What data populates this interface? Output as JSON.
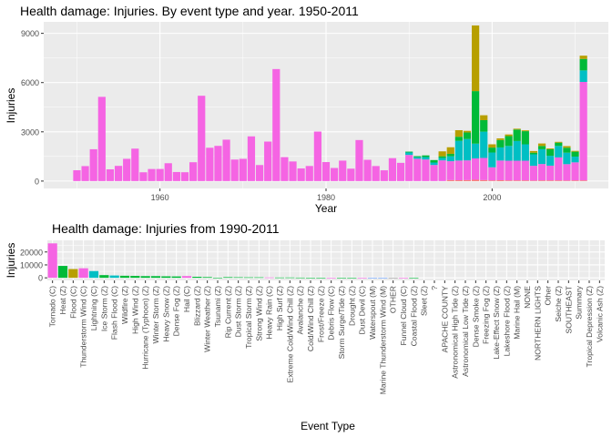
{
  "chart_data": [
    {
      "type": "bar",
      "stacked": true,
      "title": "Health damage: Injuries. By event type and year. 1950-2011",
      "xlabel": "Year",
      "ylabel": "Injuries",
      "xlim": [
        1946,
        2014
      ],
      "ylim": [
        -450,
        9700
      ],
      "x_ticks": [
        1960,
        1980,
        2000
      ],
      "y_ticks": [
        0,
        3000,
        6000,
        9000
      ],
      "x_tick_labels": [
        "1960",
        "1980",
        "2000"
      ],
      "y_tick_labels": [
        "0",
        "3000",
        "6000",
        "9000"
      ],
      "grid": true,
      "legend": "none",
      "x": [
        1950,
        1951,
        1952,
        1953,
        1954,
        1955,
        1956,
        1957,
        1958,
        1959,
        1960,
        1961,
        1962,
        1963,
        1964,
        1965,
        1966,
        1967,
        1968,
        1969,
        1970,
        1971,
        1972,
        1973,
        1974,
        1975,
        1976,
        1977,
        1978,
        1979,
        1980,
        1981,
        1982,
        1983,
        1984,
        1985,
        1986,
        1987,
        1988,
        1989,
        1990,
        1991,
        1992,
        1993,
        1994,
        1995,
        1996,
        1997,
        1998,
        1999,
        2000,
        2001,
        2002,
        2003,
        2004,
        2005,
        2006,
        2007,
        2008,
        2009,
        2010,
        2011
      ],
      "series": [
        {
          "color": "#F8766D",
          "values": [
            0,
            0,
            0,
            0,
            0,
            0,
            0,
            0,
            0,
            0,
            0,
            0,
            0,
            0,
            0,
            0,
            0,
            0,
            0,
            0,
            0,
            0,
            0,
            0,
            0,
            0,
            0,
            0,
            0,
            0,
            0,
            0,
            0,
            0,
            0,
            0,
            0,
            0,
            0,
            0,
            0,
            0,
            0,
            0,
            0,
            60,
            50,
            60,
            80,
            60,
            40,
            50,
            40,
            40,
            40,
            30,
            40,
            40,
            40,
            30,
            40,
            40
          ]
        },
        {
          "color": "#F564E3",
          "values": [
            659,
            912,
            1939,
            5131,
            715,
            926,
            1355,
            1976,
            535,
            734,
            737,
            1087,
            551,
            538,
            1148,
            5197,
            2030,
            2144,
            2522,
            1311,
            1355,
            2723,
            976,
            2406,
            6824,
            1457,
            1195,
            771,
            919,
            3014,
            1157,
            798,
            1246,
            756,
            2499,
            1295,
            916,
            656,
            1395,
            1111,
            1593,
            1358,
            1314,
            980,
            1260,
            1150,
            1200,
            1200,
            1300,
            1350,
            800,
            1200,
            1200,
            1200,
            1200,
            900,
            1000,
            900,
            1400,
            1000,
            1100,
            6000
          ]
        },
        {
          "color": "#00BFC4",
          "values": [
            0,
            0,
            0,
            0,
            0,
            0,
            0,
            0,
            0,
            0,
            0,
            0,
            0,
            0,
            0,
            0,
            0,
            0,
            0,
            0,
            0,
            0,
            0,
            0,
            0,
            0,
            0,
            0,
            0,
            0,
            0,
            0,
            0,
            0,
            0,
            0,
            0,
            0,
            0,
            0,
            150,
            100,
            150,
            150,
            150,
            300,
            1200,
            1300,
            900,
            1600,
            900,
            800,
            900,
            1200,
            1000,
            700,
            900,
            600,
            700,
            700,
            350,
            700
          ]
        },
        {
          "color": "#619CFF",
          "values": [
            0,
            0,
            0,
            0,
            0,
            0,
            0,
            0,
            0,
            0,
            0,
            0,
            0,
            0,
            0,
            0,
            0,
            0,
            0,
            0,
            0,
            0,
            0,
            0,
            0,
            0,
            0,
            0,
            0,
            0,
            0,
            0,
            0,
            0,
            0,
            0,
            0,
            0,
            0,
            0,
            0,
            0,
            0,
            0,
            0,
            0,
            0,
            0,
            0,
            0,
            0,
            0,
            0,
            0,
            0,
            0,
            0,
            0,
            0,
            0,
            0,
            0
          ]
        },
        {
          "color": "#00BA38",
          "values": [
            0,
            0,
            0,
            0,
            0,
            0,
            0,
            0,
            0,
            0,
            0,
            0,
            0,
            0,
            0,
            0,
            0,
            0,
            0,
            0,
            0,
            0,
            0,
            0,
            0,
            0,
            0,
            0,
            0,
            0,
            0,
            0,
            0,
            0,
            0,
            0,
            0,
            0,
            0,
            0,
            50,
            60,
            100,
            150,
            100,
            150,
            250,
            400,
            3200,
            700,
            300,
            450,
            600,
            700,
            800,
            100,
            200,
            400,
            200,
            300,
            300,
            700
          ]
        },
        {
          "color": "#B79F00",
          "values": [
            0,
            0,
            0,
            0,
            0,
            0,
            0,
            0,
            0,
            0,
            0,
            0,
            0,
            0,
            0,
            0,
            0,
            0,
            0,
            0,
            0,
            0,
            0,
            0,
            0,
            0,
            0,
            0,
            0,
            0,
            0,
            0,
            0,
            0,
            0,
            0,
            0,
            0,
            0,
            0,
            0,
            0,
            0,
            0,
            300,
            400,
            400,
            100,
            4000,
            300,
            200,
            100,
            100,
            50,
            50,
            100,
            150,
            50,
            50,
            100,
            50,
            200
          ]
        }
      ]
    },
    {
      "type": "bar",
      "title": "Health damage: Injuries from 1990-2011",
      "xlabel": "Event Type",
      "ylabel": "Injuries",
      "ylim": [
        -2000,
        29000
      ],
      "y_ticks": [
        0,
        10000,
        20000
      ],
      "y_tick_labels": [
        "0",
        "10000",
        "20000"
      ],
      "grid": true,
      "legend": "none",
      "categories": [
        "Tornado (C)",
        "Heat (Z)",
        "Flood (C)",
        "Thunderstorm Wind (C)",
        "Lightning (C)",
        "Ice Storm (Z)",
        "Flash Flood (C)",
        "Wildfire (Z)",
        "High Wind (Z)",
        "Hurricane (Typhoon) (Z)",
        "Winter Storm (Z)",
        "Heavy Snow (Z)",
        "Dense Fog (Z)",
        "Hail (C)",
        "Blizzard (Z)",
        "Winter Weather (Z)",
        "Tsunami (Z)",
        "Rip Current (Z)",
        "Dust Storm (Z)",
        "Tropical Storm (Z)",
        "Strong Wind (Z)",
        "Heavy Rain (C)",
        "High Surf (Z)",
        "Extreme Cold/Wind Chill (Z)",
        "Avalanche (Z)",
        "Cold/Wind Chill (Z)",
        "Frost/Freeze (Z)",
        "Debris Flow (C)",
        "Storm Surge/Tide (Z)",
        "Drought (Z)",
        "Dust Devil (C)",
        "Waterspout (M)",
        "Marine Thunderstorm Wind (M)",
        "OTHER",
        "Funnel Cloud (C)",
        "Coastal Flood (Z)",
        "Sleet (Z)",
        "?",
        "APACHE COUNTY",
        "Astronomical High Tide (Z)",
        "Astronomical Low Tide (Z)",
        "Dense Smoke (Z)",
        "Freezing Fog (Z)",
        "Lake-Effect Snow (Z)",
        "Lakeshore Flood (Z)",
        "Marine Hail (M)",
        "NONE",
        "NORTHERN LIGHTS",
        "Other",
        "Seiche (Z)",
        "SOUTHEAST",
        "Summary",
        "Tropical Depression (Z)",
        "Volcanic Ash (Z)"
      ],
      "values": [
        26674,
        9224,
        6791,
        7400,
        5230,
        2100,
        1802,
        1606,
        1507,
        1328,
        1321,
        1164,
        1076,
        1360,
        805,
        579,
        129,
        529,
        440,
        383,
        385,
        283,
        240,
        260,
        170,
        40,
        40,
        38,
        43,
        19,
        42,
        29,
        26,
        4,
        3,
        2,
        0,
        0,
        0,
        0,
        0,
        0,
        0,
        0,
        0,
        0,
        0,
        0,
        0,
        0,
        0,
        0,
        0,
        0
      ],
      "colors": [
        "#F564E3",
        "#00BA38",
        "#B79F00",
        "#F564E3",
        "#00BFC4",
        "#00BA38",
        "#00BFC4",
        "#00BA38",
        "#00BA38",
        "#00BA38",
        "#00BA38",
        "#00BA38",
        "#00BA38",
        "#F564E3",
        "#00BA38",
        "#00BA38",
        "#00BA38",
        "#00BA38",
        "#00BA38",
        "#00BA38",
        "#00BA38",
        "#F564E3",
        "#00BA38",
        "#00BA38",
        "#00BA38",
        "#00BA38",
        "#00BA38",
        "#F564E3",
        "#00BA38",
        "#00BA38",
        "#F564E3",
        "#619CFF",
        "#619CFF",
        "#999999",
        "#F564E3",
        "#00BA38",
        "#00BA38",
        "#999999",
        "#999999",
        "#00BA38",
        "#00BA38",
        "#00BA38",
        "#00BA38",
        "#00BA38",
        "#00BA38",
        "#619CFF",
        "#999999",
        "#999999",
        "#999999",
        "#00BA38",
        "#999999",
        "#999999",
        "#00BA38",
        "#00BA38"
      ]
    }
  ]
}
